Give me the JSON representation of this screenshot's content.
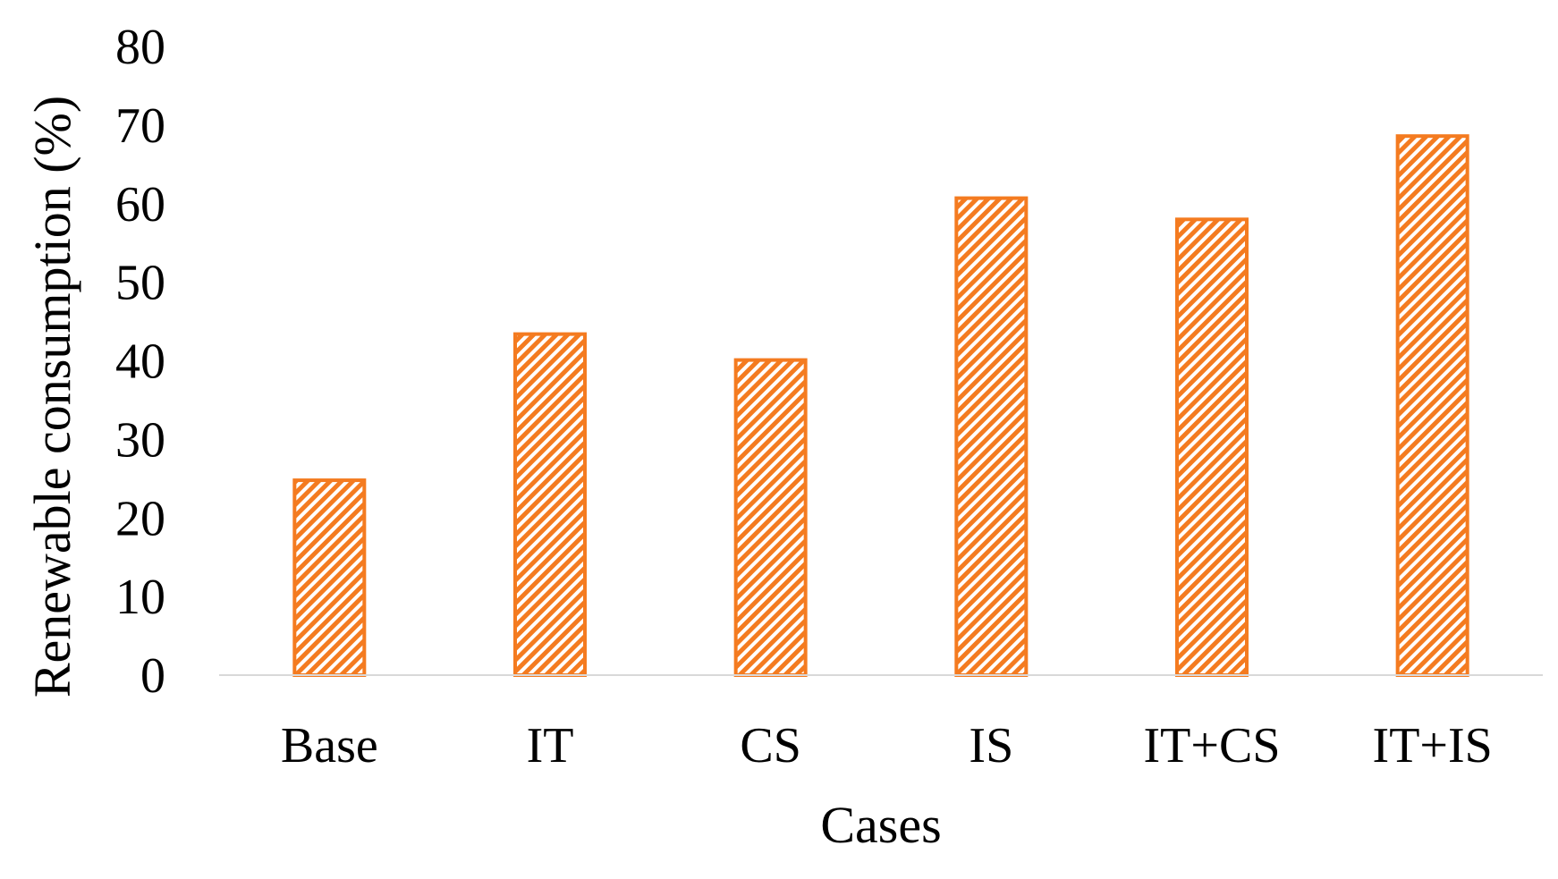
{
  "chart_data": {
    "type": "bar",
    "categories": [
      "Base",
      "IT",
      "CS",
      "IS",
      "IT+CS",
      "IT+IS"
    ],
    "values": [
      24.8,
      43.4,
      40.1,
      60.7,
      58.0,
      68.6
    ],
    "xlabel": "Cases",
    "ylabel": "Renewable consumption (%)",
    "ylim": [
      0,
      80
    ],
    "yticks": [
      "0",
      "10",
      "20",
      "30",
      "40",
      "50",
      "60",
      "70",
      "80"
    ],
    "grid": false,
    "legend": "none",
    "bar_color": "#F47B20",
    "bar_pattern": "diagonal-hatch",
    "axis_line_color": "#D9D9D9"
  }
}
